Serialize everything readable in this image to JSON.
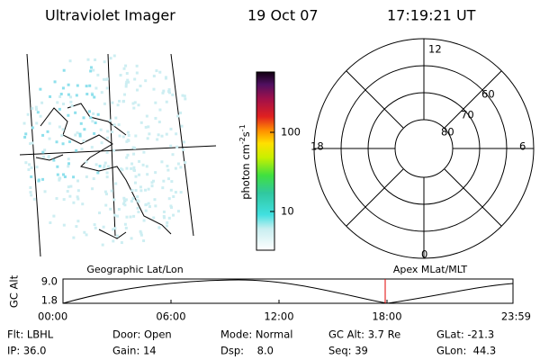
{
  "header": {
    "title": "Ultraviolet Imager",
    "date": "19 Oct 07",
    "time": "17:19:21 UT"
  },
  "map": {
    "label": "Geographic Lat/Lon"
  },
  "colorbar": {
    "label": "photon cm",
    "exp1": "-2",
    "unit2": "s",
    "exp2": "-1",
    "ticks": [
      "100",
      "10"
    ]
  },
  "polar": {
    "label": "Apex MLat/MLT",
    "hours": [
      "12",
      "18",
      "6",
      "0"
    ],
    "lats": [
      "60",
      "70",
      "80"
    ]
  },
  "altitude": {
    "ylabel": "GC Alt",
    "yticks": [
      "9.0",
      "1.8"
    ],
    "xticks": [
      "00:00",
      "06:00",
      "12:00",
      "18:00",
      "23:59"
    ]
  },
  "info": {
    "rows": [
      [
        "Flt: LBHL",
        "Door: Open",
        "Mode: Normal",
        "GC Alt: 3.7 Re",
        "GLat: -21.3"
      ],
      [
        "IP: 36.0",
        "Gain: 14",
        "Dsp:    8.0",
        "Seq: 39",
        "GLon:  44.3"
      ]
    ]
  }
}
